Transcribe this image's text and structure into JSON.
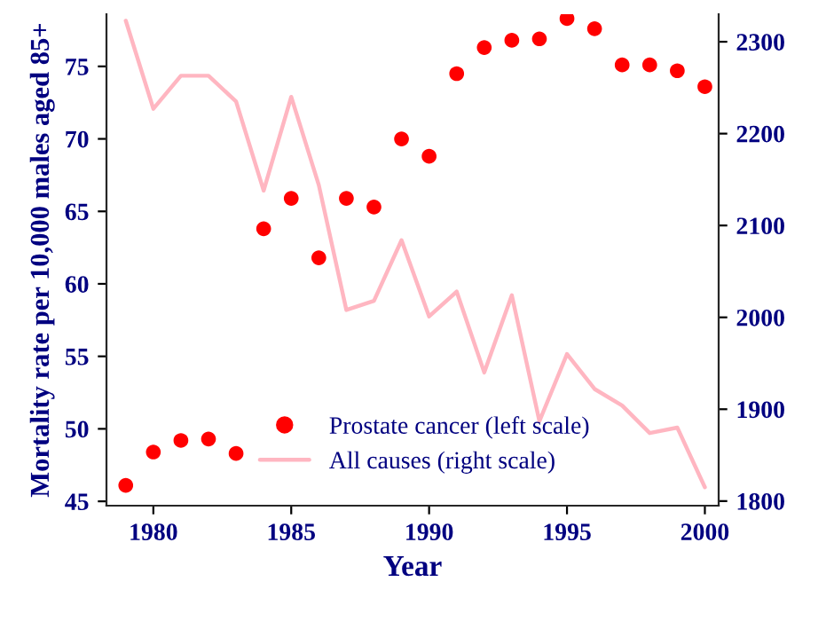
{
  "chart_data": {
    "type": "scatter",
    "xlabel": "Year",
    "ylabel": "Mortality rate per 10,000 males aged 85+",
    "x": [
      1979,
      1980,
      1981,
      1982,
      1983,
      1984,
      1985,
      1986,
      1987,
      1988,
      1989,
      1990,
      1991,
      1992,
      1993,
      1994,
      1995,
      1996,
      1997,
      1998,
      1999,
      2000
    ],
    "series": [
      {
        "name": "Prostate cancer (left scale)",
        "color": "#ff0000",
        "marker": "circle",
        "values": [
          46.1,
          48.4,
          49.2,
          49.3,
          48.3,
          63.8,
          65.9,
          61.8,
          65.9,
          65.3,
          70.0,
          68.8,
          74.5,
          76.3,
          76.8,
          76.9,
          78.3,
          77.6,
          75.1,
          75.1,
          74.7,
          73.6
        ]
      },
      {
        "name": "All causes (right scale)",
        "type": "line",
        "axis": "y2",
        "color": "#ffb6c1",
        "line_style": "solid",
        "values": [
          2323,
          2227,
          2263,
          2263,
          2235,
          2138,
          2240,
          2144,
          2008,
          2018,
          2084,
          2001,
          2028,
          1940,
          2024,
          1887,
          1960,
          1922,
          1904,
          1874,
          1880,
          1815
        ]
      }
    ],
    "xlim": [
      1978.3,
      2000.5
    ],
    "xticks": [
      1980,
      1985,
      1990,
      1995,
      2000
    ],
    "ylim": [
      44.7,
      78.6
    ],
    "yticks": [
      45,
      50,
      55,
      60,
      65,
      70,
      75
    ],
    "y2lim": [
      1795,
      2330
    ],
    "y2ticks": [
      1800,
      1900,
      2000,
      2100,
      2200,
      2300
    ],
    "grid": false,
    "legend": "bottom"
  }
}
